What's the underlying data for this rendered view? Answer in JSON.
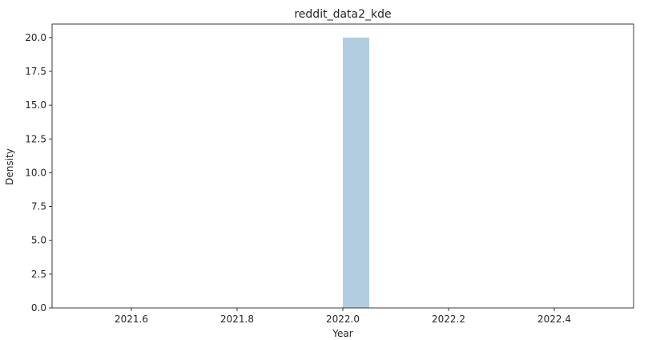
{
  "chart_data": {
    "type": "bar",
    "title": "reddit_data2_kde",
    "xlabel": "Year",
    "ylabel": "Density",
    "xlim": [
      2021.45,
      2022.55
    ],
    "ylim": [
      0,
      21.0
    ],
    "xticks": [
      2021.6,
      2021.8,
      2022.0,
      2022.2,
      2022.4
    ],
    "xtick_labels": [
      "2021.6",
      "2021.8",
      "2022.0",
      "2022.2",
      "2022.4"
    ],
    "yticks": [
      0,
      2.5,
      5.0,
      7.5,
      10.0,
      12.5,
      15.0,
      17.5,
      20.0
    ],
    "ytick_labels": [
      "0.0",
      "2.5",
      "5.0",
      "7.5",
      "10.0",
      "12.5",
      "15.0",
      "17.5",
      "20.0"
    ],
    "bars": [
      {
        "x_start": 2022.0,
        "x_end": 2022.05,
        "value": 20.0
      }
    ],
    "bar_color": "#b3cde0",
    "grid": false,
    "legend": "none"
  }
}
